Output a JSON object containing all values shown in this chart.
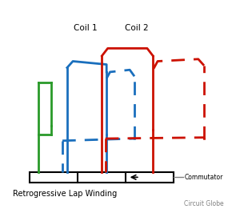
{
  "title": "Retrogressive Lap Winding",
  "subtitle": "Circuit Globe",
  "coil1_label": "Coil 1",
  "coil2_label": "Coil 2",
  "commutator_label": "Commutator",
  "bg_color": "#ffffff",
  "blue_color": "#1a6fbd",
  "red_color": "#cc1100",
  "green_color": "#2a9a2a",
  "lw": 2.0,
  "figsize": [
    3.0,
    2.71
  ],
  "dpi": 100
}
